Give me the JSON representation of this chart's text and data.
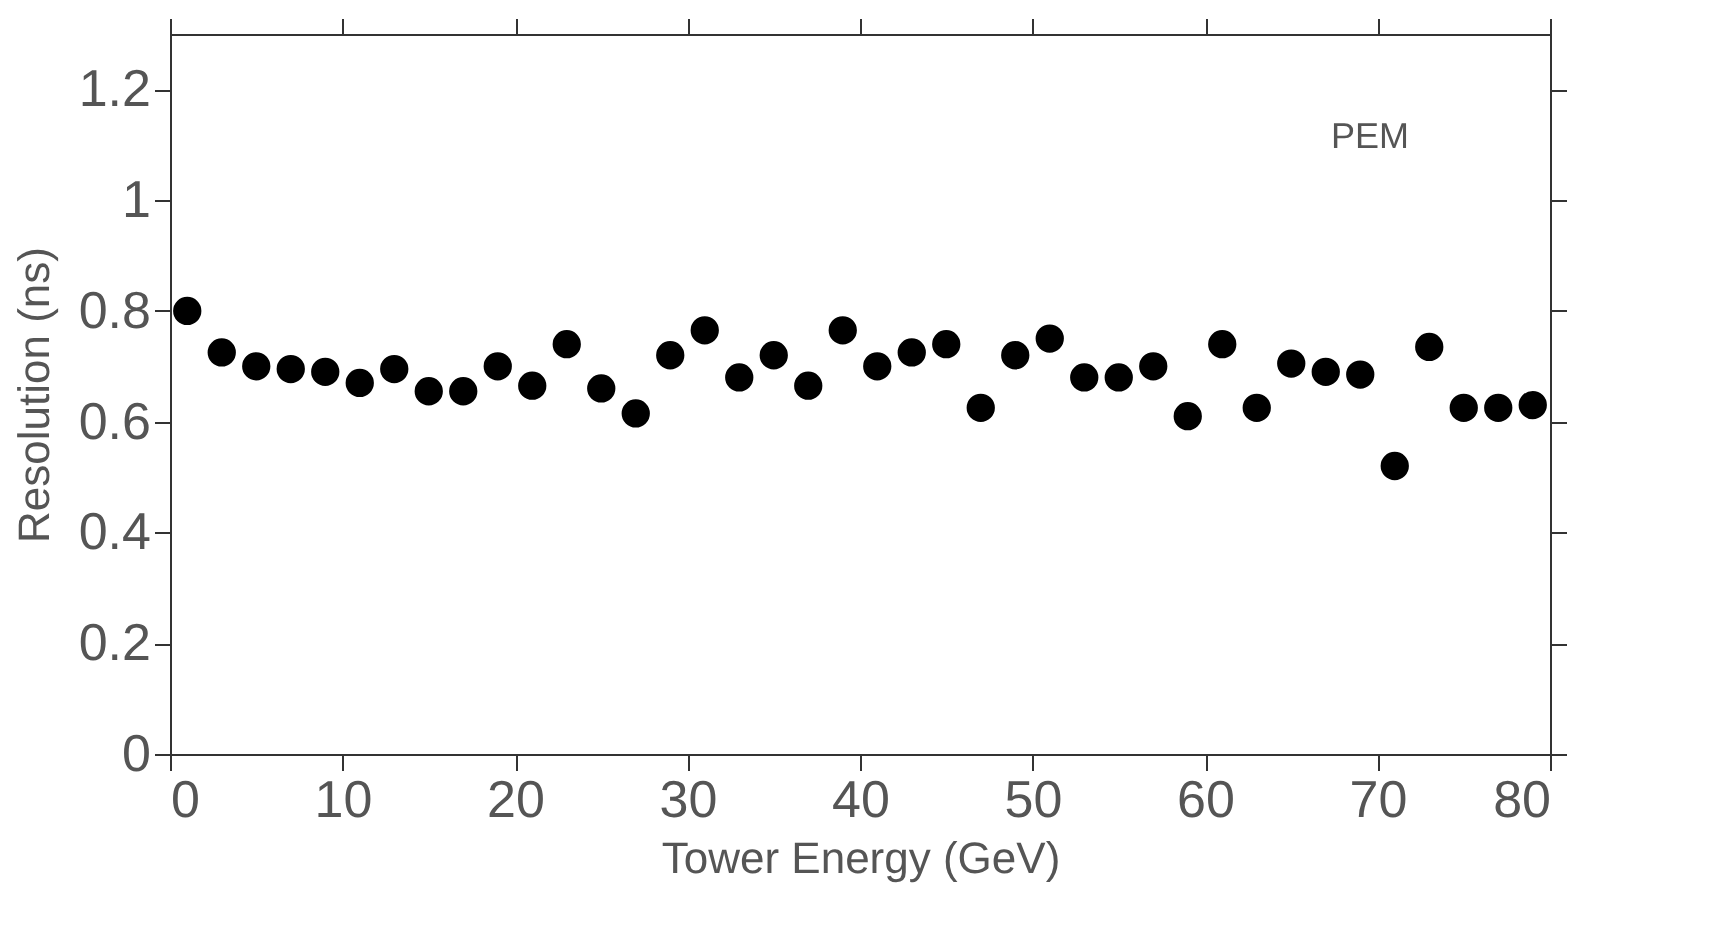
{
  "chart_data": {
    "type": "scatter",
    "xlabel": "Tower Energy (GeV)",
    "ylabel": "Resolution (ns)",
    "annotations": [
      "PEM"
    ],
    "x": [
      1,
      3,
      5,
      7,
      9,
      11,
      13,
      15,
      17,
      19,
      21,
      23,
      25,
      27,
      29,
      31,
      33,
      35,
      37,
      39,
      41,
      43,
      45,
      47,
      49,
      51,
      53,
      55,
      57,
      59,
      61,
      63,
      65,
      67,
      69,
      71,
      73,
      75,
      77,
      79
    ],
    "series": [
      {
        "color": "#000000",
        "values": [
          0.8,
          0.725,
          0.7,
          0.695,
          0.69,
          0.67,
          0.695,
          0.655,
          0.655,
          0.7,
          0.665,
          0.74,
          0.66,
          0.615,
          0.72,
          0.765,
          0.68,
          0.72,
          0.665,
          0.765,
          0.7,
          0.725,
          0.74,
          0.625,
          0.72,
          0.75,
          0.68,
          0.68,
          0.7,
          0.61,
          0.74,
          0.625,
          0.705,
          0.69,
          0.685,
          0.52,
          0.735,
          0.625,
          0.625,
          0.63
        ]
      }
    ],
    "xlim": [
      0,
      80
    ],
    "xticks": [
      0,
      10,
      20,
      30,
      40,
      50,
      60,
      70,
      80
    ],
    "ylim": [
      0,
      1.3
    ],
    "yticks": [
      0,
      0.2,
      0.4,
      0.6,
      0.8,
      1,
      1.2
    ],
    "marker": "circle",
    "grid": false
  }
}
